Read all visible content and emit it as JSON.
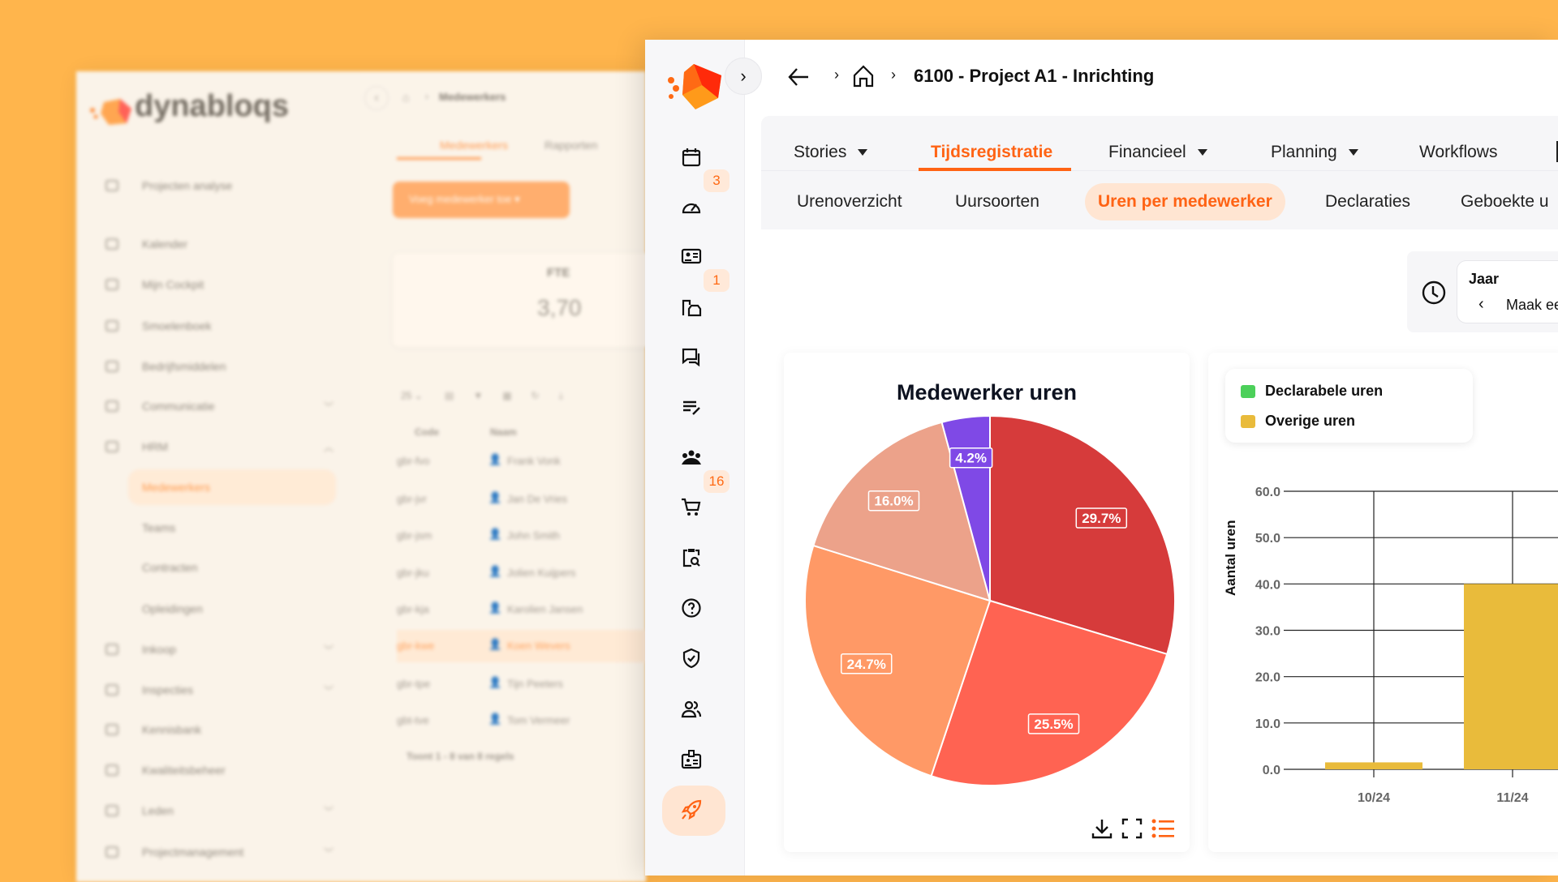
{
  "background_app": {
    "brand": "dynabloqs",
    "breadcrumb": "Medewerkers",
    "tabs": [
      "Medewerkers",
      "Rapporten"
    ],
    "add_button": "Voeg medewerker toe",
    "fte_label": "FTE",
    "fte_value": "3,70",
    "page_size": "25",
    "columns": [
      "Code",
      "Naam"
    ],
    "sidebar": [
      {
        "label": "Projecten analyse"
      },
      {
        "label": "Kalender"
      },
      {
        "label": "Mijn Cockpit"
      },
      {
        "label": "Smoelenboek"
      },
      {
        "label": "Bedrijfsmiddelen"
      },
      {
        "label": "Communicatie",
        "chevron": "down"
      },
      {
        "label": "HRM",
        "chevron": "up"
      },
      {
        "label": "Medewerkers",
        "sub": true,
        "active": true
      },
      {
        "label": "Teams",
        "sub": true
      },
      {
        "label": "Contracten",
        "sub": true
      },
      {
        "label": "Opleidingen",
        "sub": true
      },
      {
        "label": "Inkoop",
        "chevron": "down"
      },
      {
        "label": "Inspecties",
        "chevron": "down"
      },
      {
        "label": "Kennisbank"
      },
      {
        "label": "Kwaliteitsbeheer"
      },
      {
        "label": "Leden",
        "chevron": "down"
      },
      {
        "label": "Projectmanagement",
        "chevron": "down"
      }
    ],
    "rows": [
      {
        "code": "gbr-fvo",
        "name": "Frank Vonk"
      },
      {
        "code": "gbr-jvr",
        "name": "Jan De Vries"
      },
      {
        "code": "gbr-jsm",
        "name": "John Smith"
      },
      {
        "code": "gbr-jku",
        "name": "Jolien Kuijpers"
      },
      {
        "code": "gbr-kja",
        "name": "Karolien Jansen"
      },
      {
        "code": "gbr-kwe",
        "name": "Koen Wevers",
        "highlighted": true
      },
      {
        "code": "gbr-tpe",
        "name": "Tijn Peeters"
      },
      {
        "code": "gbt-tve",
        "name": "Tom Vermeer"
      }
    ],
    "footer": "Toont 1 - 8 van 8 regels"
  },
  "header": {
    "title": "6100 - Project A1 - Inrichting"
  },
  "rail": {
    "items": [
      {
        "icon": "calendar-icon"
      },
      {
        "icon": "gauge-icon",
        "badge": "3"
      },
      {
        "icon": "id-card-icon"
      },
      {
        "icon": "building-car-icon",
        "badge": "1"
      },
      {
        "icon": "chat-icon"
      },
      {
        "icon": "edit-list-icon"
      },
      {
        "icon": "team-icon"
      },
      {
        "icon": "cart-icon",
        "badge": "16"
      },
      {
        "icon": "clipboard-search-icon"
      },
      {
        "icon": "help-icon"
      },
      {
        "icon": "shield-check-icon"
      },
      {
        "icon": "users-icon"
      },
      {
        "icon": "badge-icon"
      },
      {
        "icon": "rocket-icon",
        "active": true
      }
    ]
  },
  "tabs": [
    {
      "label": "Stories",
      "dropdown": true
    },
    {
      "label": "Tijdsregistratie",
      "active": true
    },
    {
      "label": "Financieel",
      "dropdown": true
    },
    {
      "label": "Planning",
      "dropdown": true
    },
    {
      "label": "Workflows"
    }
  ],
  "subtabs": [
    {
      "label": "Urenoverzicht"
    },
    {
      "label": "Uursoorten"
    },
    {
      "label": "Uren per medewerker",
      "active": true
    },
    {
      "label": "Declaraties"
    },
    {
      "label": "Geboekte u"
    }
  ],
  "period_filter": {
    "label": "Jaar",
    "value": "Maak ee"
  },
  "accent_color": "#ff6314",
  "chart_data": [
    {
      "type": "pie",
      "title": "Medewerker uren",
      "slices": [
        {
          "value": 29.7,
          "label": "29.7%",
          "color": "#d63b3b"
        },
        {
          "value": 25.5,
          "label": "25.5%",
          "color": "#ff6352"
        },
        {
          "value": 24.7,
          "label": "24.7%",
          "color": "#ff9966"
        },
        {
          "value": 16.0,
          "label": "16.0%",
          "color": "#eca28a"
        },
        {
          "value": 4.2,
          "label": "4.2%",
          "color": "#7f49e6"
        }
      ]
    },
    {
      "type": "bar",
      "ylabel": "Aantal uren",
      "ylim": [
        0,
        60
      ],
      "yticks": [
        "0.0",
        "10.0",
        "20.0",
        "30.0",
        "40.0",
        "50.0",
        "60.0"
      ],
      "categories": [
        "10/24",
        "11/24"
      ],
      "legend_placement": "top-left",
      "grid": true,
      "series": [
        {
          "name": "Declarabele uren",
          "color": "#4cd05a",
          "values": [
            0,
            0
          ]
        },
        {
          "name": "Overige uren",
          "color": "#e9bb3b",
          "values": [
            1.5,
            40
          ]
        }
      ]
    }
  ]
}
